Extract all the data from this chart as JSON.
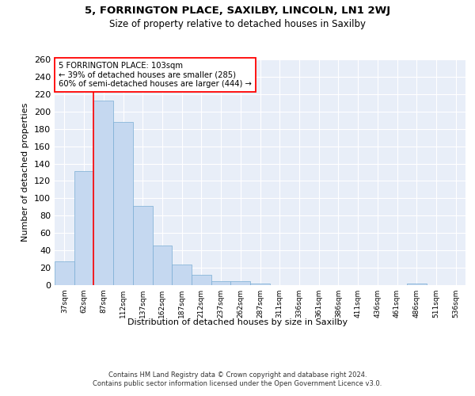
{
  "title1": "5, FORRINGTON PLACE, SAXILBY, LINCOLN, LN1 2WJ",
  "title2": "Size of property relative to detached houses in Saxilby",
  "xlabel": "Distribution of detached houses by size in Saxilby",
  "ylabel": "Number of detached properties",
  "categories": [
    "37sqm",
    "62sqm",
    "87sqm",
    "112sqm",
    "137sqm",
    "162sqm",
    "187sqm",
    "212sqm",
    "237sqm",
    "262sqm",
    "287sqm",
    "311sqm",
    "336sqm",
    "361sqm",
    "386sqm",
    "411sqm",
    "436sqm",
    "461sqm",
    "486sqm",
    "511sqm",
    "536sqm"
  ],
  "values": [
    27,
    131,
    213,
    188,
    91,
    46,
    24,
    12,
    5,
    5,
    2,
    0,
    0,
    0,
    0,
    0,
    0,
    0,
    2,
    0,
    0
  ],
  "bar_color": "#c5d8f0",
  "bar_edge_color": "#7aadd4",
  "background_color": "#e8eef8",
  "grid_color": "#ffffff",
  "annotation_text": "5 FORRINGTON PLACE: 103sqm\n← 39% of detached houses are smaller (285)\n60% of semi-detached houses are larger (444) →",
  "vline_x": 1.5,
  "vline_color": "red",
  "annotation_box_color": "white",
  "annotation_box_edge": "red",
  "footer1": "Contains HM Land Registry data © Crown copyright and database right 2024.",
  "footer2": "Contains public sector information licensed under the Open Government Licence v3.0.",
  "ylim": [
    0,
    260
  ],
  "yticks": [
    0,
    20,
    40,
    60,
    80,
    100,
    120,
    140,
    160,
    180,
    200,
    220,
    240,
    260
  ]
}
